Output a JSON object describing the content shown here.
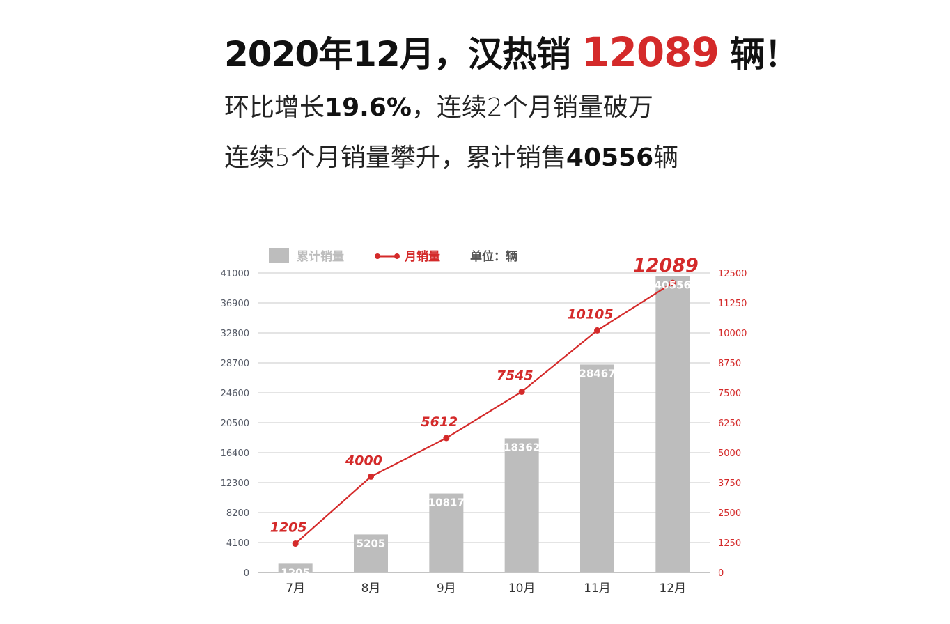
{
  "header": {
    "title_prefix": "2020年12月，汉热销",
    "title_highlight": "12089",
    "title_suffix": "辆！",
    "line2_a": "环比增长",
    "line2_b": "19.6%",
    "line2_c": "，连续2个月销量破万",
    "line3_a": "连续5个月销量攀升，累计销售",
    "line3_b": "40556",
    "line3_c": "辆"
  },
  "colors": {
    "bar": "#bdbdbd",
    "line": "#d42a2a",
    "grid": "#c8c8c8"
  },
  "chart_data": {
    "type": "bar",
    "categories": [
      "7月",
      "8月",
      "9月",
      "10月",
      "11月",
      "12月"
    ],
    "series": [
      {
        "name": "累计销量",
        "type": "bar",
        "axis": "left",
        "values": [
          1205,
          5205,
          10817,
          18362,
          28467,
          40556
        ]
      },
      {
        "name": "月销量",
        "type": "line",
        "axis": "right",
        "values": [
          1205,
          4000,
          5612,
          7545,
          10105,
          12089
        ]
      }
    ],
    "unit_label": "单位：辆",
    "left_ticks": [
      "0",
      "4100",
      "8200",
      "12300",
      "16400",
      "20500",
      "24600",
      "28700",
      "32800",
      "36900",
      "41000"
    ],
    "right_ticks": [
      "0",
      "1250",
      "2500",
      "3750",
      "5000",
      "6250",
      "7500",
      "8750",
      "10000",
      "11250",
      "12500"
    ],
    "ylim_left": [
      0,
      41000
    ],
    "ylim_right": [
      0,
      12500
    ],
    "grid": true,
    "legend_position": "top"
  }
}
